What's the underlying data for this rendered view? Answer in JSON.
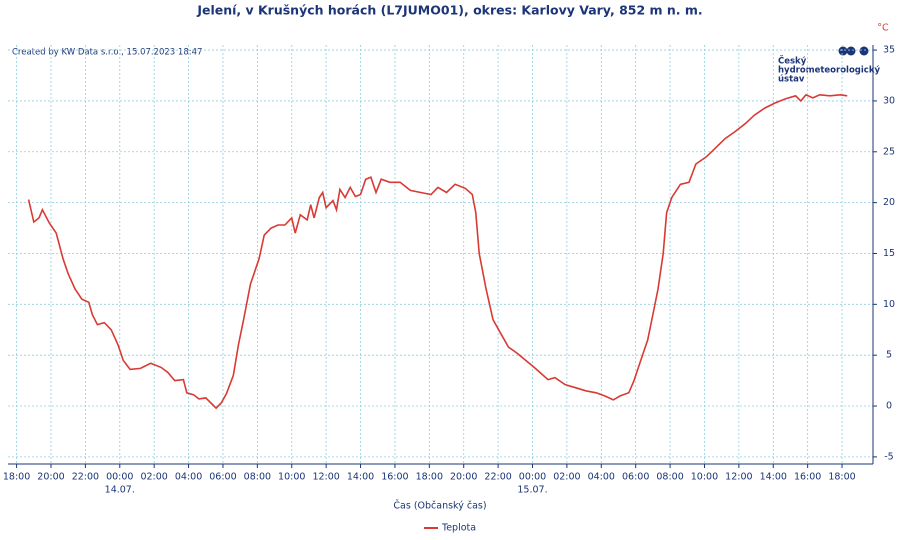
{
  "chart_data": {
    "type": "line",
    "title": "Jelení, v Krušných horách (L7JUMO01), okres: Karlovy Vary, 852 m n. m.",
    "credit": "Created by KW Data s.r.o., 15.07.2023 18:47",
    "logo": [
      "Český",
      "hydrometeorologický",
      "ústav"
    ],
    "x_label": "Čas (Občanský čas)",
    "y_unit": "°C",
    "x": [
      18.7,
      19.0,
      19.3,
      19.5,
      19.9,
      20.3,
      20.7,
      21.0,
      21.4,
      21.8,
      22.2,
      22.4,
      22.7,
      23.1,
      23.5,
      23.9,
      24.2,
      24.6,
      25.2,
      25.8,
      26.4,
      26.8,
      27.2,
      27.7,
      27.9,
      28.3,
      28.6,
      29.0,
      29.3,
      29.6,
      29.9,
      30.2,
      30.6,
      30.9,
      31.2,
      31.6,
      32.1,
      32.4,
      32.8,
      33.2,
      33.6,
      34.0,
      34.2,
      34.5,
      34.9,
      35.1,
      35.3,
      35.6,
      35.8,
      36.0,
      36.4,
      36.6,
      36.8,
      37.1,
      37.4,
      37.7,
      38.0,
      38.3,
      38.6,
      38.9,
      39.2,
      39.7,
      40.3,
      40.9,
      41.5,
      42.1,
      42.5,
      43.0,
      43.5,
      44.1,
      44.5,
      44.7,
      44.9,
      45.3,
      45.7,
      46.1,
      46.6,
      47.1,
      47.6,
      48.1,
      48.5,
      48.9,
      49.3,
      49.9,
      50.5,
      51.1,
      51.7,
      52.2,
      52.7,
      53.1,
      53.6,
      53.9,
      54.3,
      54.7,
      55.0,
      55.3,
      55.6,
      55.8,
      56.1,
      56.6,
      57.1,
      57.5,
      58.1,
      58.6,
      59.2,
      59.8,
      60.4,
      60.9,
      61.5,
      62.1,
      62.7,
      63.3,
      63.6,
      63.9,
      64.3,
      64.7,
      65.3,
      65.9,
      66.3
    ],
    "series": [
      {
        "name": "Teplota",
        "color": "#d93a33",
        "values": [
          20.3,
          18.1,
          18.5,
          19.3,
          18,
          17,
          14.5,
          13,
          11.5,
          10.5,
          10.2,
          9,
          8,
          8.2,
          7.5,
          6.0,
          4.5,
          3.6,
          3.7,
          4.2,
          3.8,
          3.3,
          2.5,
          2.6,
          1.3,
          1.1,
          0.7,
          0.8,
          0.3,
          -0.2,
          0.3,
          1.2,
          3,
          6,
          8.5,
          12,
          14.5,
          16.8,
          17.5,
          17.8,
          17.8,
          18.5,
          17,
          18.8,
          18.3,
          19.8,
          18.5,
          20.5,
          21,
          19.5,
          20.2,
          19.3,
          21.3,
          20.5,
          21.5,
          20.6,
          20.8,
          22.3,
          22.5,
          21,
          22.3,
          22,
          22,
          21.2,
          21,
          20.8,
          21.5,
          21,
          21.8,
          21.4,
          20.8,
          19,
          15,
          11.5,
          8.5,
          7.3,
          5.8,
          5.2,
          4.5,
          3.8,
          3.2,
          2.6,
          2.8,
          2.1,
          1.8,
          1.5,
          1.3,
          1.0,
          0.6,
          1.0,
          1.3,
          2.5,
          4.5,
          6.5,
          9,
          11.5,
          15,
          19,
          20.5,
          21.8,
          22,
          23.8,
          24.5,
          25.3,
          26.3,
          27,
          27.8,
          28.6,
          29.3,
          29.8,
          30.2,
          30.5,
          30,
          30.6,
          30.3,
          30.6,
          30.5,
          30.6,
          30.5
        ]
      }
    ],
    "xlim": [
      17.5,
      67.8
    ],
    "xticks": [
      {
        "value": 18,
        "label": "18:00"
      },
      {
        "value": 20,
        "label": "20:00"
      },
      {
        "value": 22,
        "label": "22:00"
      },
      {
        "value": 24,
        "label": "00:00"
      },
      {
        "value": 26,
        "label": "02:00"
      },
      {
        "value": 28,
        "label": "04:00"
      },
      {
        "value": 30,
        "label": "06:00"
      },
      {
        "value": 32,
        "label": "08:00"
      },
      {
        "value": 34,
        "label": "10:00"
      },
      {
        "value": 36,
        "label": "12:00"
      },
      {
        "value": 38,
        "label": "14:00"
      },
      {
        "value": 40,
        "label": "16:00"
      },
      {
        "value": 42,
        "label": "18:00"
      },
      {
        "value": 44,
        "label": "20:00"
      },
      {
        "value": 46,
        "label": "22:00"
      },
      {
        "value": 48,
        "label": "00:00"
      },
      {
        "value": 50,
        "label": "02:00"
      },
      {
        "value": 52,
        "label": "04:00"
      },
      {
        "value": 54,
        "label": "06:00"
      },
      {
        "value": 56,
        "label": "08:00"
      },
      {
        "value": 58,
        "label": "10:00"
      },
      {
        "value": 60,
        "label": "12:00"
      },
      {
        "value": 62,
        "label": "14:00"
      },
      {
        "value": 64,
        "label": "16:00"
      },
      {
        "value": 66,
        "label": "18:00"
      }
    ],
    "date_labels": [
      {
        "value": 24,
        "label": "14.07."
      },
      {
        "value": 48,
        "label": "15.07."
      }
    ],
    "ylim": [
      -5.7,
      35.5
    ],
    "yticks": [
      -5,
      0,
      5,
      10,
      15,
      20,
      25,
      30,
      35
    ],
    "grid": true,
    "legend": "bottom"
  }
}
